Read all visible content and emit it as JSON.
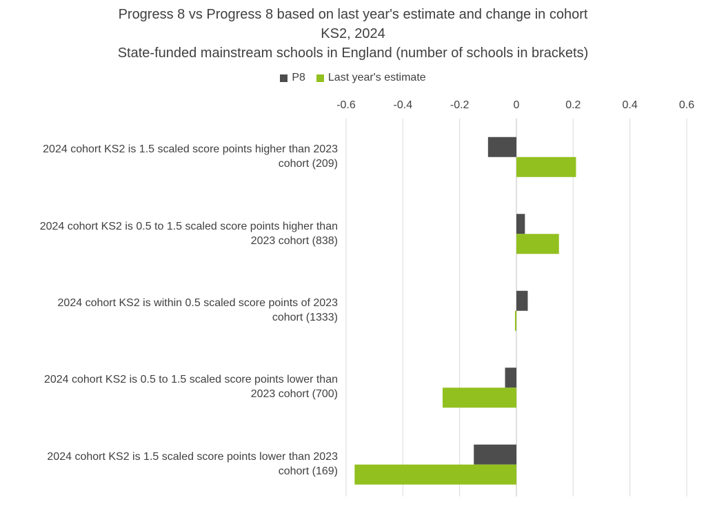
{
  "chart_data": {
    "type": "bar",
    "orientation": "horizontal",
    "title_lines": [
      "Progress 8 vs Progress 8 based on last year's estimate and change in cohort",
      "KS2, 2024",
      "State-funded mainstream schools in England (number of schools in brackets)"
    ],
    "categories": [
      [
        "2024 cohort KS2 is 1.5 scaled score points higher than 2023",
        "cohort (209)"
      ],
      [
        "2024 cohort KS2 is 0.5 to 1.5 scaled score points higher than",
        "2023 cohort (838)"
      ],
      [
        "2024 cohort KS2 is within 0.5 scaled score points of 2023",
        "cohort (1333)"
      ],
      [
        "2024 cohort KS2 is 0.5 to 1.5 scaled score points lower than",
        "2023 cohort (700)"
      ],
      [
        "2024 cohort KS2 is 1.5 scaled score points lower than 2023",
        "cohort (169)"
      ]
    ],
    "series": [
      {
        "name": "P8",
        "color": "#4d4d4d",
        "values": [
          -0.1,
          0.03,
          0.04,
          -0.04,
          -0.15
        ]
      },
      {
        "name": "Last year's estimate",
        "color": "#92c01f",
        "values": [
          0.21,
          0.15,
          -0.005,
          -0.26,
          -0.57
        ]
      }
    ],
    "xlim": [
      -0.6,
      0.6
    ],
    "xticks": [
      -0.6,
      -0.4,
      -0.2,
      0,
      0.2,
      0.4,
      0.6
    ],
    "xtick_labels": [
      "-0.6",
      "-0.4",
      "-0.2",
      "0",
      "0.2",
      "0.4",
      "0.6"
    ],
    "axis_position": "top",
    "grid": "vertical",
    "legend_position": "top"
  }
}
